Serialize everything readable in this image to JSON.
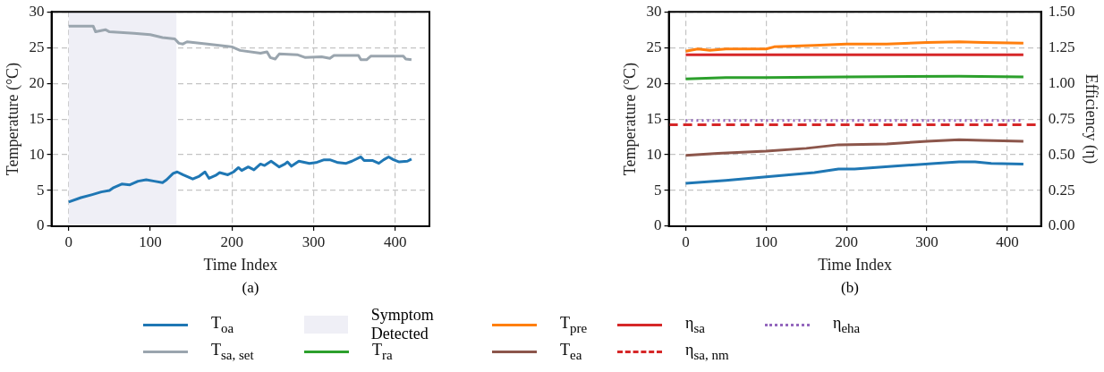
{
  "chart_data": [
    {
      "type": "line",
      "xlabel": "Time Index",
      "ylabel": "Temperature (°C)",
      "annotations": [
        "(a)"
      ],
      "xlim": [
        -21,
        442
      ],
      "xticks": [
        0,
        100,
        200,
        300,
        400
      ],
      "ylim": [
        0,
        30
      ],
      "yticks": [
        0,
        5,
        10,
        15,
        20,
        25,
        30
      ],
      "grid": true,
      "legend": "bottom",
      "marker": "none",
      "bands": [
        {
          "axis": "x",
          "from": 0,
          "to": 132,
          "label": "Symptom Detected",
          "color": "#efeff6"
        }
      ],
      "series": [
        {
          "name": "T$_{oa}$",
          "color": "#1f77b4",
          "x": [
            0,
            15,
            28,
            40,
            50,
            55,
            65,
            75,
            85,
            95,
            105,
            115,
            120,
            128,
            133,
            140,
            152,
            160,
            167,
            172,
            180,
            185,
            195,
            202,
            208,
            212,
            220,
            227,
            235,
            240,
            248,
            258,
            265,
            268,
            273,
            282,
            295,
            303,
            313,
            320,
            330,
            340,
            347,
            358,
            362,
            372,
            380,
            386,
            392,
            398,
            405,
            415,
            420
          ],
          "values": [
            3.4,
            4.0,
            4.4,
            4.8,
            5.0,
            5.4,
            5.9,
            5.8,
            6.3,
            6.5,
            6.3,
            6.1,
            6.5,
            7.4,
            7.6,
            7.2,
            6.6,
            7.0,
            7.6,
            6.7,
            7.1,
            7.5,
            7.2,
            7.6,
            8.2,
            7.8,
            8.3,
            7.9,
            8.7,
            8.5,
            9.1,
            8.3,
            8.7,
            9.0,
            8.4,
            9.1,
            8.8,
            8.9,
            9.3,
            9.3,
            8.9,
            8.8,
            9.1,
            9.7,
            9.2,
            9.2,
            8.8,
            9.3,
            9.7,
            9.3,
            9.0,
            9.1,
            9.4
          ]
        },
        {
          "name": "T$_{sa, set}$",
          "color": "#9aa5ae",
          "x": [
            0,
            30,
            33,
            45,
            50,
            80,
            100,
            115,
            130,
            135,
            140,
            145,
            170,
            200,
            210,
            235,
            243,
            247,
            253,
            258,
            280,
            290,
            310,
            320,
            325,
            355,
            358,
            365,
            370,
            410,
            413,
            420
          ],
          "values": [
            28.0,
            28.0,
            27.2,
            27.5,
            27.2,
            27.0,
            26.8,
            26.4,
            26.2,
            25.6,
            25.5,
            25.8,
            25.5,
            25.1,
            24.6,
            24.2,
            24.4,
            23.6,
            23.4,
            24.1,
            24.0,
            23.6,
            23.7,
            23.5,
            23.9,
            23.9,
            23.3,
            23.3,
            23.8,
            23.8,
            23.4,
            23.3
          ]
        }
      ]
    },
    {
      "type": "line",
      "xlabel": "Time Index",
      "ylabel": "Temperature (°C)",
      "y2label": "Efficiency (η)",
      "annotations": [
        "(b)"
      ],
      "xlim": [
        -21,
        442
      ],
      "xticks": [
        0,
        100,
        200,
        300,
        400
      ],
      "ylim": [
        0,
        30
      ],
      "yticks": [
        0,
        5,
        10,
        15,
        20,
        25,
        30
      ],
      "y2lim": [
        0,
        1.5
      ],
      "y2ticks": [
        {
          "value": 0,
          "label": "0.00"
        },
        {
          "value": 0.25,
          "label": "0.25"
        },
        {
          "value": 0.5,
          "label": "0.50"
        },
        {
          "value": 0.75,
          "label": "0.75"
        },
        {
          "value": 1,
          "label": "1.00"
        },
        {
          "value": 1.25,
          "label": "1.25"
        },
        {
          "value": 1.5,
          "label": "1.50"
        }
      ],
      "grid": true,
      "legend": "bottom",
      "marker": "none",
      "series": [
        {
          "name": "T$_{oa}$",
          "color": "#1f77b4",
          "x": [
            0,
            50,
            100,
            160,
            190,
            210,
            260,
            310,
            340,
            360,
            380,
            420
          ],
          "values": [
            6.0,
            6.4,
            6.9,
            7.5,
            8.0,
            8.0,
            8.4,
            8.8,
            9.0,
            9.0,
            8.8,
            8.7
          ]
        },
        {
          "name": "T$_{ra}$",
          "color": "#2ca02c",
          "x": [
            0,
            50,
            100,
            200,
            340,
            420
          ],
          "values": [
            20.6,
            20.8,
            20.8,
            20.9,
            21.0,
            20.9
          ]
        },
        {
          "name": "T$_{pre}$",
          "color": "#ff7f0e",
          "x": [
            0,
            15,
            30,
            50,
            100,
            110,
            160,
            200,
            250,
            300,
            340,
            370,
            420
          ],
          "values": [
            24.5,
            24.8,
            24.6,
            24.8,
            24.8,
            25.1,
            25.3,
            25.5,
            25.5,
            25.7,
            25.8,
            25.7,
            25.6
          ]
        },
        {
          "name": "T$_{ea}$",
          "color": "#8c564b",
          "x": [
            0,
            40,
            100,
            150,
            190,
            250,
            300,
            340,
            370,
            420
          ],
          "values": [
            9.9,
            10.2,
            10.5,
            10.9,
            11.4,
            11.5,
            11.9,
            12.1,
            12.0,
            11.9
          ]
        },
        {
          "name": "η$_{sa}$",
          "color": "#d62728",
          "axis": "y2",
          "line_style": "solid",
          "x": [
            0,
            420
          ],
          "values": [
            1.2,
            1.2
          ]
        },
        {
          "name": "η$_{sa, nm}$",
          "color": "#d62728",
          "axis": "y2",
          "line_style": "dashed",
          "x": [
            -21,
            442
          ],
          "values": [
            0.71,
            0.71
          ]
        },
        {
          "name": "η$_{eha}$",
          "color": "#9467bd",
          "axis": "y2",
          "line_style": "dotted",
          "x": [
            0,
            420
          ],
          "values": [
            0.74,
            0.74
          ]
        }
      ]
    }
  ]
}
